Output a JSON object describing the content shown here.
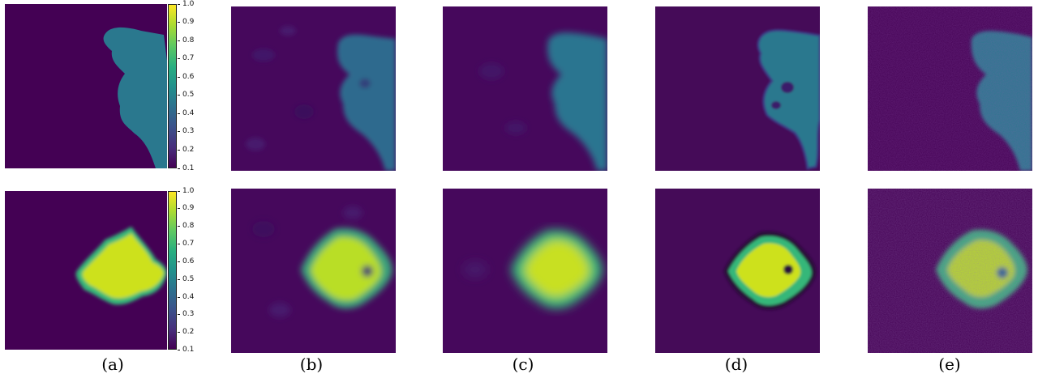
{
  "figure": {
    "captions": [
      "(a)",
      "(b)",
      "(c)",
      "(d)",
      "(e)"
    ],
    "colormap": "viridis",
    "colorbar_ticks": [
      "1.0",
      "0.9",
      "0.8",
      "0.7",
      "0.6",
      "0.5",
      "0.4",
      "0.3",
      "0.2",
      "0.1"
    ],
    "background_color": "#440154",
    "row1_region_color": "#2a788e",
    "row2_region_color": "#cde11d"
  }
}
